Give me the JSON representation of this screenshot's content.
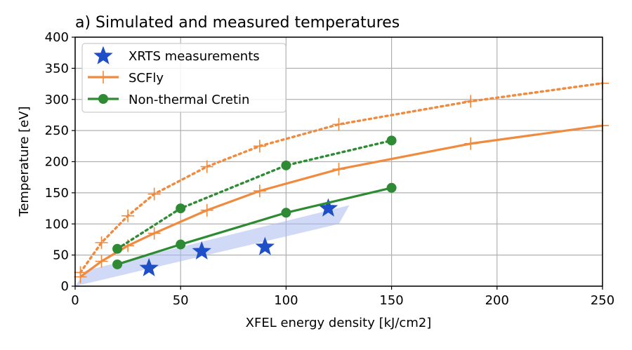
{
  "chart_data": {
    "type": "line",
    "title": "a) Simulated and measured temperatures",
    "xlabel": "XFEL energy density [kJ/cm2]",
    "ylabel": "Temperature [eV]",
    "xlim": [
      0,
      250
    ],
    "ylim": [
      0,
      400
    ],
    "xticks": [
      0,
      50,
      100,
      150,
      200,
      250
    ],
    "yticks": [
      0,
      50,
      100,
      150,
      200,
      250,
      300,
      350,
      400
    ],
    "grid": true,
    "legend_position": "top-left",
    "colors": {
      "xrts": "#1f4fc8",
      "scfly": "#ef8a3e",
      "cretin": "#2e8b34",
      "band": "#aabbee"
    },
    "legend": [
      {
        "label": "XRTS measurements",
        "series": "xrts"
      },
      {
        "label": "SCFly",
        "series": "scfly"
      },
      {
        "label": "Non-thermal Cretin",
        "series": "cretin"
      }
    ],
    "series": [
      {
        "name": "XRTS measurements",
        "key": "xrts",
        "marker": "star",
        "line": "none",
        "x": [
          35,
          60,
          90,
          120
        ],
        "y": [
          29,
          56,
          63,
          125
        ]
      },
      {
        "name": "SCFly",
        "key": "scfly",
        "marker": "plus",
        "line": "solid",
        "x": [
          2.5,
          12.5,
          25,
          37.5,
          62.5,
          87.5,
          125,
          187.5,
          250
        ],
        "y": [
          15,
          40,
          65,
          85,
          122,
          153,
          188,
          229,
          258
        ]
      },
      {
        "name": "SCFly (dotted)",
        "key": "scfly",
        "marker": "plus",
        "line": "dotted",
        "x": [
          2.5,
          12.5,
          25,
          37.5,
          62.5,
          87.5,
          125,
          187.5,
          250
        ],
        "y": [
          22,
          70,
          113,
          148,
          192,
          225,
          260,
          297,
          326
        ]
      },
      {
        "name": "Non-thermal Cretin",
        "key": "cretin",
        "marker": "circle",
        "line": "solid",
        "x": [
          20,
          50,
          100,
          150
        ],
        "y": [
          35,
          67,
          118,
          158
        ]
      },
      {
        "name": "Non-thermal Cretin (dotted)",
        "key": "cretin",
        "marker": "circle",
        "line": "dotted",
        "x": [
          20,
          50,
          100,
          150
        ],
        "y": [
          60,
          125,
          194,
          234
        ]
      }
    ],
    "band": {
      "description": "shaded uncertainty region of XRTS measurements",
      "x": [
        0,
        125,
        130,
        5
      ],
      "y": [
        0,
        100,
        130,
        25
      ]
    }
  }
}
